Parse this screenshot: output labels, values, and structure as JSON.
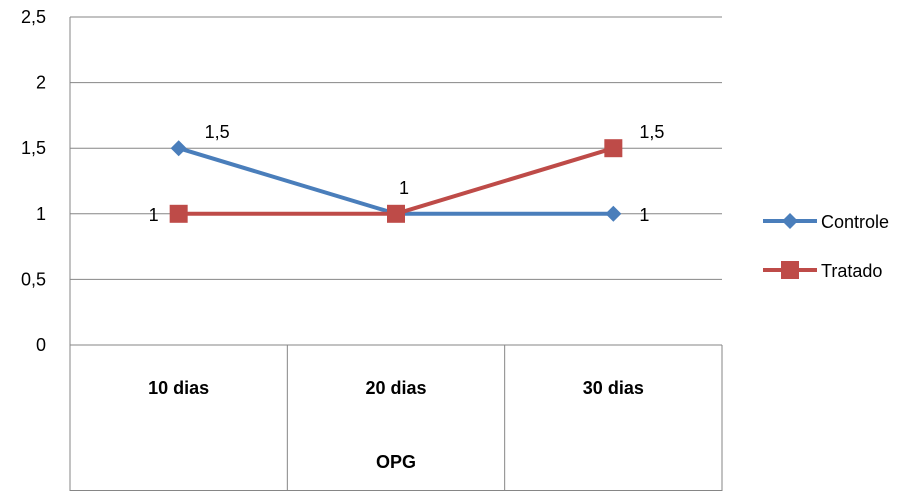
{
  "chart_data": {
    "type": "line",
    "categories": [
      "10 dias",
      "20 dias",
      "30 dias"
    ],
    "category_group_label": "OPG",
    "y_ticks": [
      "0",
      "0,5",
      "1",
      "1,5",
      "2",
      "2,5"
    ],
    "ylim": [
      0,
      2.5
    ],
    "grid": "horizontal",
    "legend_position": "right",
    "series": [
      {
        "name": "Controle",
        "color": "#4A7EBB",
        "marker": "diamond",
        "values": [
          1.5,
          1,
          1
        ],
        "labels": [
          "1,5",
          "",
          "1"
        ]
      },
      {
        "name": "Tratado",
        "color": "#BE4B48",
        "marker": "square",
        "values": [
          1,
          1,
          1.5
        ],
        "labels": [
          "1",
          "1",
          "1,5"
        ]
      }
    ]
  }
}
